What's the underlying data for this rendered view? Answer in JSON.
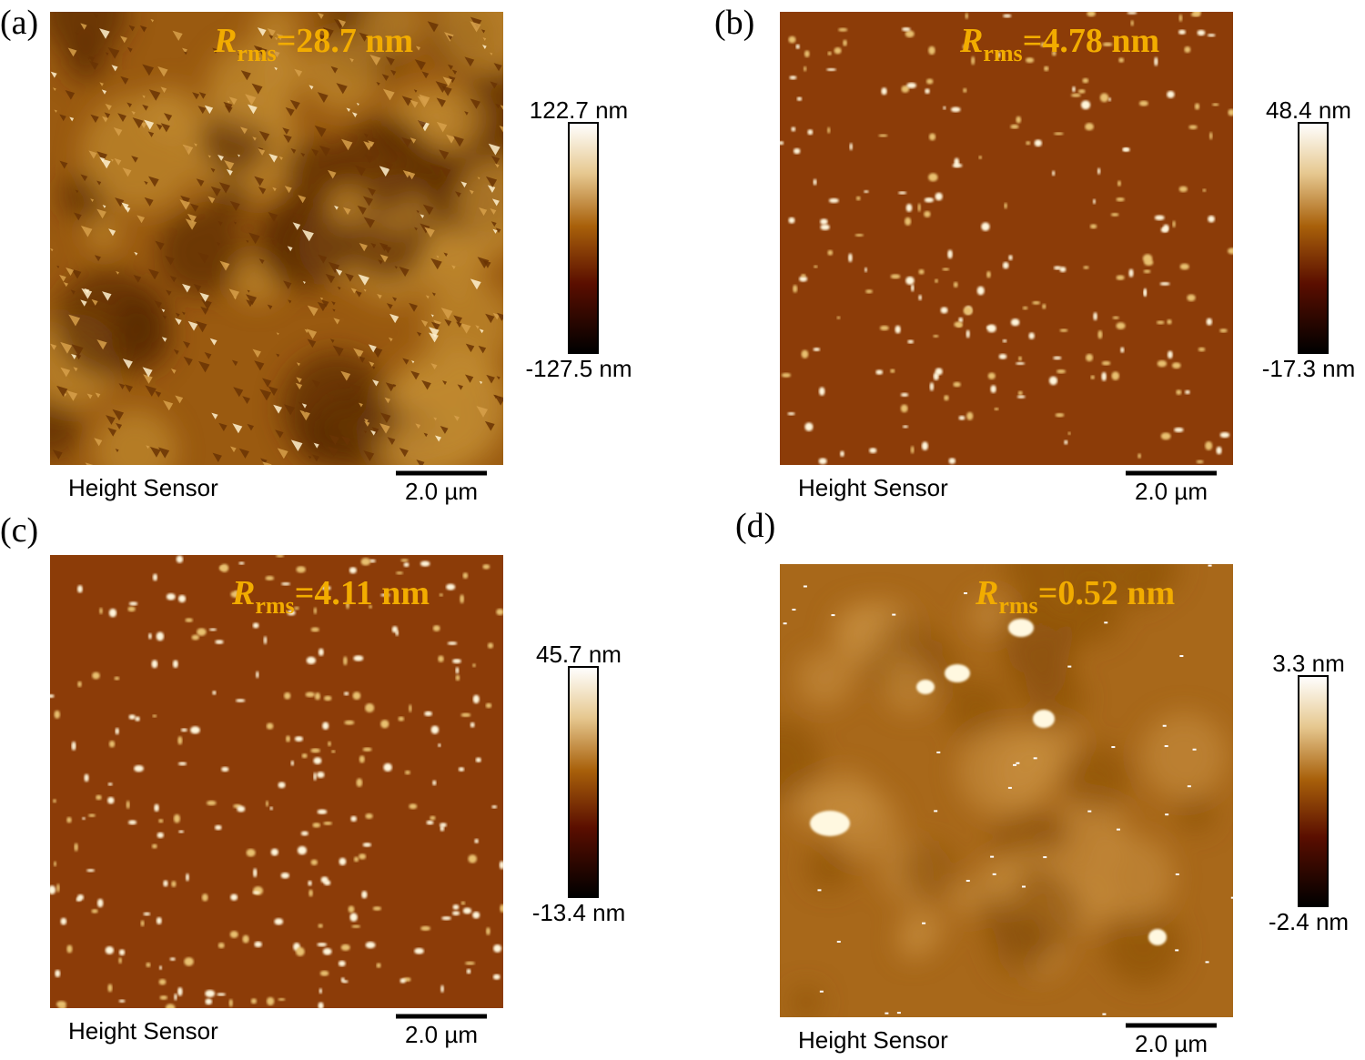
{
  "panels": [
    {
      "label": "(a)",
      "rms_symbol": "R",
      "rms_subscript": "rms",
      "rms_value": "=28.7 nm",
      "colorbar_max": "122.7 nm",
      "colorbar_min": "-127.5 nm",
      "channel": "Height Sensor",
      "scale_bar": "2.0 µm"
    },
    {
      "label": "(b)",
      "rms_symbol": "R",
      "rms_subscript": "rms",
      "rms_value": "=4.78 nm",
      "colorbar_max": "48.4 nm",
      "colorbar_min": "-17.3 nm",
      "channel": "Height Sensor",
      "scale_bar": "2.0 µm"
    },
    {
      "label": "(c)",
      "rms_symbol": "R",
      "rms_subscript": "rms",
      "rms_value": "=4.11 nm",
      "colorbar_max": "45.7 nm",
      "colorbar_min": "-13.4 nm",
      "channel": "Height Sensor",
      "scale_bar": "2.0 µm"
    },
    {
      "label": "(d)",
      "rms_symbol": "R",
      "rms_subscript": "rms",
      "rms_value": "=0.52 nm",
      "colorbar_max": "3.3 nm",
      "colorbar_min": "-2.4 nm",
      "channel": "Height Sensor",
      "scale_bar": "2.0 µm"
    }
  ]
}
